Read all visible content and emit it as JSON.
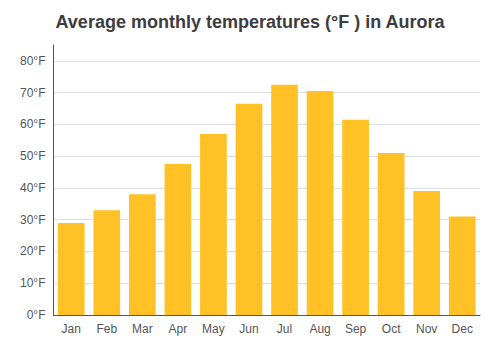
{
  "chart_data": {
    "type": "bar",
    "title": "Average monthly temperatures (°F ) in Aurora",
    "categories": [
      "Jan",
      "Feb",
      "Mar",
      "Apr",
      "May",
      "Jun",
      "Jul",
      "Aug",
      "Sep",
      "Oct",
      "Nov",
      "Dec"
    ],
    "values": [
      29,
      33,
      38,
      47.5,
      57,
      66.5,
      72.5,
      70.5,
      61.5,
      51,
      39,
      31
    ],
    "color": "#FFC125",
    "ylim": [
      0,
      85
    ],
    "yticks": [
      {
        "value": 0,
        "label": "0°F"
      },
      {
        "value": 10,
        "label": "10°F"
      },
      {
        "value": 20,
        "label": "20°F"
      },
      {
        "value": 30,
        "label": "30°F"
      },
      {
        "value": 40,
        "label": "40°F"
      },
      {
        "value": 50,
        "label": "50°F"
      },
      {
        "value": 60,
        "label": "60°F"
      },
      {
        "value": 70,
        "label": "70°F"
      },
      {
        "value": 80,
        "label": "80°F"
      }
    ],
    "grid": true
  }
}
